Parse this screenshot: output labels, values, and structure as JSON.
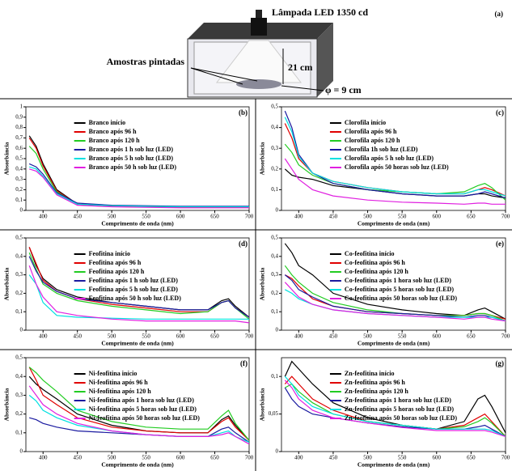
{
  "diagram": {
    "lamp_label": "Lâmpada LED 1350 cd",
    "panel_label": "(a)",
    "samples_label": "Amostras pintadas",
    "height_label": "21 cm",
    "diameter_label": "φ = 9 cm"
  },
  "chart_data": [
    {
      "type": "line",
      "panel_label": "(b)",
      "ylabel": "Absorbância",
      "xlabel": "Comprimento de onda (nm)",
      "x": [
        380,
        390,
        400,
        420,
        450,
        500,
        550,
        600,
        640,
        660,
        670,
        680,
        700
      ],
      "xlim": [
        375,
        700
      ],
      "xticks": [
        400,
        450,
        500,
        550,
        600,
        650,
        700
      ],
      "ylim": [
        0,
        1
      ],
      "yticks": [
        0,
        {
          "value": 0.1,
          "label": "0,1"
        },
        {
          "value": 0.2,
          "label": "0,2"
        },
        {
          "value": 0.3,
          "label": "0,3"
        },
        {
          "value": 0.4,
          "label": "0,4"
        },
        {
          "value": 0.5,
          "label": "0,5"
        },
        {
          "value": 0.6,
          "label": "0,6"
        },
        {
          "value": 0.7,
          "label": "0,7"
        },
        {
          "value": 0.8,
          "label": "0,8"
        },
        {
          "value": 0.9,
          "label": "0,9"
        },
        1
      ],
      "series": [
        {
          "name": "Branco início",
          "color": "#000000",
          "values": [
            0.72,
            0.62,
            0.45,
            0.2,
            0.06,
            0.04,
            0.035,
            0.03,
            0.03,
            0.03,
            0.03,
            0.03,
            0.03
          ]
        },
        {
          "name": "Branco após  96 h",
          "color": "#e00000",
          "values": [
            0.7,
            0.6,
            0.43,
            0.19,
            0.06,
            0.04,
            0.035,
            0.03,
            0.03,
            0.03,
            0.03,
            0.03,
            0.03
          ]
        },
        {
          "name": "Branco após 120 h",
          "color": "#22cc22",
          "values": [
            0.62,
            0.55,
            0.4,
            0.18,
            0.06,
            0.045,
            0.04,
            0.035,
            0.035,
            0.035,
            0.035,
            0.035,
            0.035
          ]
        },
        {
          "name": "Branco após 1 h sob luz (LED)",
          "color": "#1a1aa0",
          "values": [
            0.45,
            0.42,
            0.35,
            0.17,
            0.07,
            0.05,
            0.045,
            0.04,
            0.04,
            0.04,
            0.04,
            0.04,
            0.04
          ]
        },
        {
          "name": "Branco após 5 h sob luz (LED)",
          "color": "#00e0e0",
          "values": [
            0.42,
            0.4,
            0.33,
            0.16,
            0.06,
            0.045,
            0.04,
            0.035,
            0.035,
            0.035,
            0.035,
            0.035,
            0.035
          ]
        },
        {
          "name": "Branco após 50 h sob luz (LED)",
          "color": "#e020e0",
          "values": [
            0.4,
            0.38,
            0.32,
            0.15,
            0.05,
            0.035,
            0.03,
            0.025,
            0.025,
            0.025,
            0.025,
            0.025,
            0.025
          ]
        }
      ]
    },
    {
      "type": "line",
      "panel_label": "(c)",
      "ylabel": "Absorbância",
      "xlabel": "Comprimento de onda (nm)",
      "x": [
        380,
        390,
        400,
        420,
        450,
        500,
        550,
        600,
        640,
        660,
        670,
        680,
        700
      ],
      "xlim": [
        375,
        700
      ],
      "xticks": [
        400,
        450,
        500,
        550,
        600,
        650,
        700
      ],
      "ylim": [
        0,
        0.5
      ],
      "yticks": [
        0,
        {
          "value": 0.1,
          "label": "0,1"
        },
        {
          "value": 0.2,
          "label": "0,2"
        },
        {
          "value": 0.3,
          "label": "0,3"
        },
        {
          "value": 0.4,
          "label": "0,4"
        },
        {
          "value": 0.5,
          "label": "0,5"
        }
      ],
      "series": [
        {
          "name": "Clorofila início",
          "color": "#000000",
          "values": [
            0.2,
            0.17,
            0.16,
            0.15,
            0.12,
            0.1,
            0.08,
            0.07,
            0.07,
            0.08,
            0.08,
            0.07,
            0.06
          ]
        },
        {
          "name": "Clorofila após 96 h",
          "color": "#e00000",
          "values": [
            0.42,
            0.35,
            0.25,
            0.18,
            0.14,
            0.11,
            0.09,
            0.08,
            0.08,
            0.1,
            0.11,
            0.1,
            0.07
          ]
        },
        {
          "name": "Clorofila após 120 h",
          "color": "#22cc22",
          "values": [
            0.32,
            0.28,
            0.22,
            0.17,
            0.13,
            0.1,
            0.09,
            0.08,
            0.09,
            0.12,
            0.13,
            0.11,
            0.05
          ]
        },
        {
          "name": "Clorofila 1h sob luz (LED)",
          "color": "#1a1aa0",
          "values": [
            0.48,
            0.4,
            0.27,
            0.18,
            0.13,
            0.1,
            0.08,
            0.07,
            0.07,
            0.08,
            0.09,
            0.08,
            0.06
          ]
        },
        {
          "name": "Clorofila após 5 h sob luz (LED)",
          "color": "#00e0e0",
          "values": [
            0.45,
            0.38,
            0.26,
            0.18,
            0.14,
            0.11,
            0.09,
            0.08,
            0.08,
            0.1,
            0.1,
            0.09,
            0.07
          ]
        },
        {
          "name": "Clorofila após 50 horas sob luz (LED)",
          "color": "#e020e0",
          "values": [
            0.25,
            0.2,
            0.15,
            0.1,
            0.07,
            0.05,
            0.04,
            0.035,
            0.03,
            0.035,
            0.035,
            0.03,
            0.03
          ]
        }
      ]
    },
    {
      "type": "line",
      "panel_label": "(d)",
      "ylabel": "Absorbância",
      "xlabel": "Comprimento de onda (nm)",
      "x": [
        380,
        390,
        400,
        420,
        450,
        500,
        550,
        600,
        640,
        660,
        670,
        680,
        700
      ],
      "xlim": [
        375,
        700
      ],
      "xticks": [
        400,
        450,
        500,
        550,
        600,
        650,
        700
      ],
      "ylim": [
        0,
        0.5
      ],
      "yticks": [
        0,
        {
          "value": 0.1,
          "label": "0,1"
        },
        {
          "value": 0.2,
          "label": "0,2"
        },
        {
          "value": 0.3,
          "label": "0,3"
        },
        {
          "value": 0.4,
          "label": "0,4"
        },
        {
          "value": 0.5,
          "label": "0,5"
        }
      ],
      "series": [
        {
          "name": "Feofitina início",
          "color": "#000000",
          "values": [
            0.45,
            0.35,
            0.28,
            0.22,
            0.18,
            0.15,
            0.13,
            0.11,
            0.11,
            0.16,
            0.17,
            0.13,
            0.07
          ]
        },
        {
          "name": "Feofitina após 96 h",
          "color": "#e00000",
          "values": [
            0.45,
            0.36,
            0.27,
            0.21,
            0.17,
            0.14,
            0.12,
            0.1,
            0.1,
            0.15,
            0.16,
            0.12,
            0.07
          ]
        },
        {
          "name": "Feofitina após 120 h",
          "color": "#22cc22",
          "values": [
            0.42,
            0.33,
            0.25,
            0.2,
            0.16,
            0.13,
            0.11,
            0.09,
            0.1,
            0.15,
            0.16,
            0.12,
            0.06
          ]
        },
        {
          "name": "Feofitina após 1 h sob luz (LED)",
          "color": "#1a1aa0",
          "values": [
            0.4,
            0.32,
            0.26,
            0.21,
            0.17,
            0.15,
            0.13,
            0.11,
            0.11,
            0.15,
            0.16,
            0.12,
            0.07
          ]
        },
        {
          "name": "Feofitina após 5 h sob luz (LED)",
          "color": "#00e0e0",
          "values": [
            0.3,
            0.25,
            0.15,
            0.08,
            0.07,
            0.065,
            0.06,
            0.06,
            0.06,
            0.06,
            0.06,
            0.06,
            0.06
          ]
        },
        {
          "name": "Feofitina após 50 h sob luz (LED)",
          "color": "#e020e0",
          "values": [
            0.35,
            0.25,
            0.18,
            0.1,
            0.08,
            0.06,
            0.05,
            0.05,
            0.05,
            0.05,
            0.05,
            0.05,
            0.04
          ]
        }
      ]
    },
    {
      "type": "line",
      "panel_label": "(e)",
      "ylabel": "Absorbância",
      "xlabel": "Comprimento de onda (nm)",
      "x": [
        380,
        390,
        400,
        420,
        450,
        500,
        550,
        600,
        640,
        660,
        670,
        680,
        700
      ],
      "xlim": [
        375,
        700
      ],
      "xticks": [
        400,
        450,
        500,
        550,
        600,
        650,
        700
      ],
      "ylim": [
        0,
        0.5
      ],
      "yticks": [
        0,
        {
          "value": 0.1,
          "label": "0,1"
        },
        {
          "value": 0.2,
          "label": "0,2"
        },
        {
          "value": 0.3,
          "label": "0,3"
        },
        {
          "value": 0.4,
          "label": "0,4"
        },
        {
          "value": 0.5,
          "label": "0,5"
        }
      ],
      "series": [
        {
          "name": "Co-feofitina início",
          "color": "#000000",
          "values": [
            0.47,
            0.42,
            0.35,
            0.3,
            0.2,
            0.14,
            0.11,
            0.09,
            0.08,
            0.11,
            0.12,
            0.1,
            0.06
          ]
        },
        {
          "name": "Co-feofitina após 96 h",
          "color": "#e00000",
          "values": [
            0.3,
            0.28,
            0.24,
            0.17,
            0.13,
            0.1,
            0.09,
            0.08,
            0.08,
            0.09,
            0.09,
            0.08,
            0.06
          ]
        },
        {
          "name": "Co-feofitina após 120 h",
          "color": "#22cc22",
          "values": [
            0.35,
            0.3,
            0.26,
            0.2,
            0.15,
            0.11,
            0.09,
            0.08,
            0.08,
            0.09,
            0.09,
            0.08,
            0.05
          ]
        },
        {
          "name": "Co-feofitina após 1 hora sob luz (LED)",
          "color": "#1a1aa0",
          "values": [
            0.3,
            0.27,
            0.22,
            0.18,
            0.13,
            0.1,
            0.09,
            0.08,
            0.07,
            0.08,
            0.08,
            0.07,
            0.05
          ]
        },
        {
          "name": "Co-feofitina após 5 horas sob luz (LED)",
          "color": "#00e0e0",
          "values": [
            0.22,
            0.2,
            0.17,
            0.14,
            0.11,
            0.09,
            0.08,
            0.07,
            0.07,
            0.07,
            0.07,
            0.07,
            0.05
          ]
        },
        {
          "name": "Co-feofitina após 50 horas sob luz (LED)",
          "color": "#e020e0",
          "values": [
            0.26,
            0.22,
            0.18,
            0.14,
            0.11,
            0.09,
            0.08,
            0.07,
            0.06,
            0.07,
            0.07,
            0.06,
            0.05
          ]
        }
      ]
    },
    {
      "type": "line",
      "panel_label": "(f)",
      "ylabel": "Absorbância",
      "xlabel": "Comprimento de onda (nm)",
      "x": [
        380,
        390,
        400,
        420,
        450,
        500,
        550,
        600,
        640,
        660,
        670,
        680,
        700
      ],
      "xlim": [
        375,
        700
      ],
      "xticks": [
        400,
        450,
        500,
        550,
        600,
        650,
        700
      ],
      "ylim": [
        0,
        0.5
      ],
      "yticks": [
        0,
        {
          "value": 0.1,
          "label": "0,1"
        },
        {
          "value": 0.2,
          "label": "0,2"
        },
        {
          "value": 0.3,
          "label": "0,3"
        },
        {
          "value": 0.4,
          "label": "0,4"
        },
        {
          "value": 0.5,
          "label": "0,5"
        }
      ],
      "series": [
        {
          "name": "Ni-feofitina início",
          "color": "#000000",
          "values": [
            0.4,
            0.36,
            0.33,
            0.28,
            0.2,
            0.14,
            0.11,
            0.1,
            0.1,
            0.17,
            0.19,
            0.14,
            0.06
          ]
        },
        {
          "name": "Ni-feofitina após 96 h",
          "color": "#e00000",
          "values": [
            0.45,
            0.38,
            0.3,
            0.25,
            0.18,
            0.13,
            0.11,
            0.1,
            0.1,
            0.16,
            0.18,
            0.13,
            0.06
          ]
        },
        {
          "name": "Ni-feofitina após 120 h",
          "color": "#22cc22",
          "values": [
            0.45,
            0.42,
            0.38,
            0.32,
            0.22,
            0.16,
            0.13,
            0.12,
            0.12,
            0.19,
            0.22,
            0.15,
            0.06
          ]
        },
        {
          "name": "Ni-feofitina após 1 hora sob luz (LED)",
          "color": "#1a1aa0",
          "values": [
            0.18,
            0.17,
            0.15,
            0.13,
            0.11,
            0.1,
            0.09,
            0.08,
            0.08,
            0.12,
            0.13,
            0.1,
            0.05
          ]
        },
        {
          "name": "Ni-feofitina após 5 horas sob luz (LED)",
          "color": "#00e0e0",
          "values": [
            0.3,
            0.27,
            0.22,
            0.18,
            0.14,
            0.11,
            0.09,
            0.08,
            0.08,
            0.1,
            0.11,
            0.08,
            0.05
          ]
        },
        {
          "name": "Ni-feofitina após 50 horas sob luz (LED)",
          "color": "#e020e0",
          "values": [
            0.35,
            0.3,
            0.25,
            0.2,
            0.15,
            0.11,
            0.09,
            0.08,
            0.08,
            0.09,
            0.1,
            0.08,
            0.04
          ]
        }
      ]
    },
    {
      "type": "line",
      "panel_label": "(g)",
      "ylabel": "Absorbância",
      "xlabel": "Comprimento de onda (nm)",
      "x": [
        380,
        390,
        400,
        420,
        450,
        500,
        550,
        600,
        640,
        660,
        670,
        680,
        700
      ],
      "xlim": [
        375,
        700
      ],
      "xticks": [
        400,
        450,
        500,
        550,
        600,
        650,
        700
      ],
      "ylim": [
        0,
        0.125
      ],
      "yticks": [
        0,
        {
          "value": 0.05,
          "label": "0,05"
        },
        {
          "value": 0.1,
          "label": "0,1"
        }
      ],
      "series": [
        {
          "name": "Zn-feofitina início",
          "color": "#000000",
          "values": [
            0.1,
            0.12,
            0.11,
            0.09,
            0.065,
            0.045,
            0.035,
            0.03,
            0.04,
            0.07,
            0.075,
            0.06,
            0.025
          ]
        },
        {
          "name": "Zn-feofitina após 96 h",
          "color": "#e00000",
          "values": [
            0.09,
            0.1,
            0.09,
            0.07,
            0.055,
            0.04,
            0.035,
            0.03,
            0.035,
            0.045,
            0.05,
            0.04,
            0.02
          ]
        },
        {
          "name": "Zn-feofitina após 120 h",
          "color": "#22cc22",
          "values": [
            0.085,
            0.09,
            0.08,
            0.065,
            0.05,
            0.04,
            0.035,
            0.03,
            0.033,
            0.04,
            0.045,
            0.038,
            0.02
          ]
        },
        {
          "name": "Zn-feofitina após 1 hora sob luz (LED)",
          "color": "#1a1aa0",
          "values": [
            0.085,
            0.07,
            0.06,
            0.05,
            0.045,
            0.038,
            0.033,
            0.03,
            0.03,
            0.033,
            0.035,
            0.03,
            0.02
          ]
        },
        {
          "name": "Zn-feofitina após 5 horas sob luz (LED)",
          "color": "#00e0e0",
          "values": [
            0.1,
            0.09,
            0.075,
            0.06,
            0.05,
            0.04,
            0.035,
            0.03,
            0.03,
            0.03,
            0.03,
            0.028,
            0.02
          ]
        },
        {
          "name": "Zn-feofitina após 50 horas sob luz (LED)",
          "color": "#e020e0",
          "values": [
            0.095,
            0.085,
            0.07,
            0.055,
            0.045,
            0.038,
            0.032,
            0.028,
            0.028,
            0.028,
            0.028,
            0.026,
            0.02
          ]
        }
      ]
    }
  ]
}
